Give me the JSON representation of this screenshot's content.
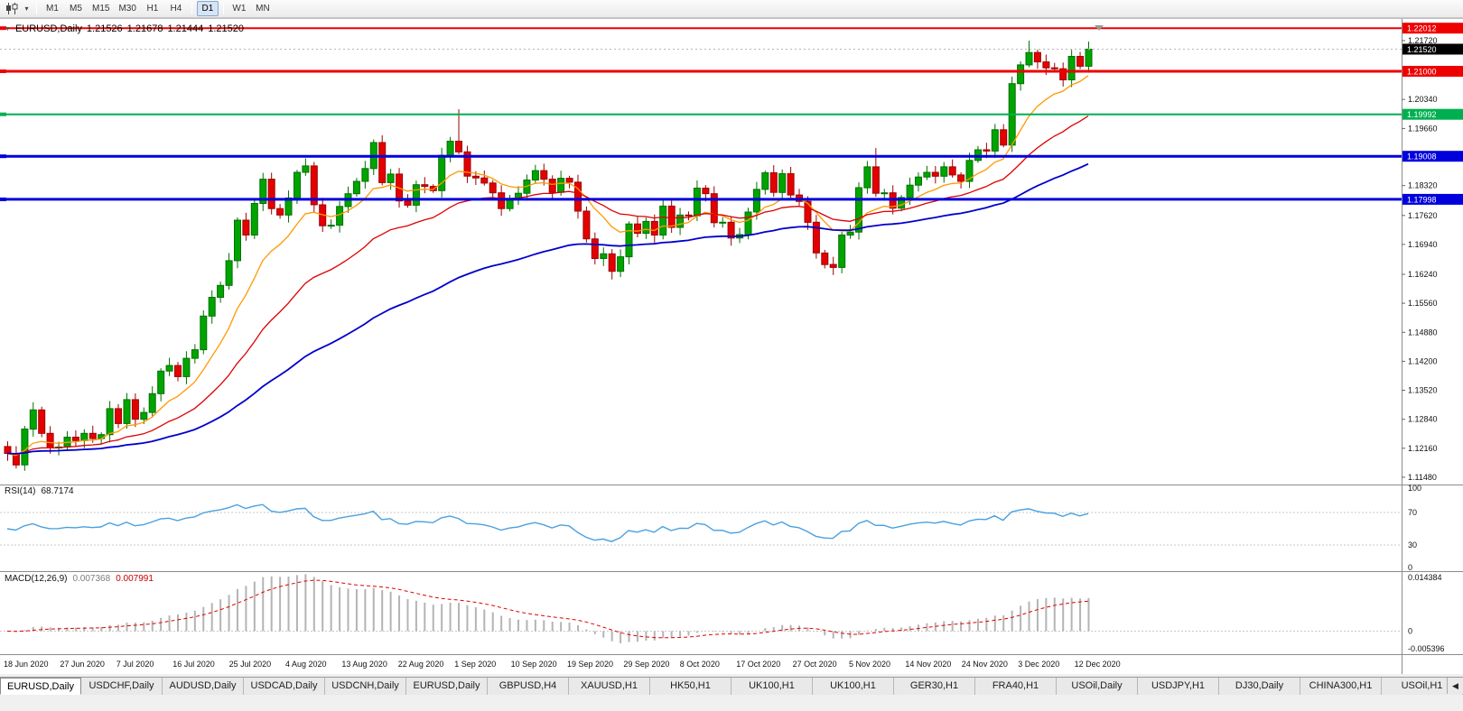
{
  "toolbar": {
    "timeframes": [
      "M1",
      "M5",
      "M15",
      "M30",
      "H1",
      "H4",
      "D1",
      "W1",
      "MN"
    ],
    "active_timeframe": "D1",
    "chart_type_icon": "candlestick-chart-icon",
    "dropdown_glyph": "▾"
  },
  "chart_header": {
    "symbol": "EURUSD,Daily",
    "open": "1.21526",
    "high": "1.21678",
    "low": "1.21444",
    "close": "1.21520"
  },
  "indicators": {
    "rsi": {
      "label": "RSI(14)",
      "value": "68.7174",
      "period": 14,
      "levels": [
        "100",
        "70",
        "30",
        "0"
      ],
      "line_color": "#4aa0e0"
    },
    "macd": {
      "label": "MACD(12,26,9)",
      "macd_value": "0.007368",
      "signal_value": "0.007991",
      "fast": 12,
      "slow": 26,
      "signal": 9,
      "axis_labels": [
        "0.014384",
        "0",
        "-0.005396"
      ],
      "axis_range": [
        -0.005396,
        0.014384
      ],
      "hist_color": "#b4b4b4",
      "signal_color": "#e00000"
    },
    "moving_averages": [
      {
        "period": 10,
        "color": "#ff9900"
      },
      {
        "period": 25,
        "color": "#dd0000"
      },
      {
        "period": 60,
        "color": "#0000cc"
      }
    ]
  },
  "chart_data": {
    "type": "candlestick",
    "symbol": "EURUSD",
    "timeframe": "Daily",
    "up_color": "#00a400",
    "down_color": "#e50000",
    "first_open": 1.122,
    "closes": [
      1.1204,
      1.1177,
      1.1261,
      1.1306,
      1.1251,
      1.1217,
      1.1219,
      1.1242,
      1.1234,
      1.1251,
      1.1239,
      1.1248,
      1.1309,
      1.1274,
      1.133,
      1.1284,
      1.13,
      1.1344,
      1.1397,
      1.141,
      1.1384,
      1.1427,
      1.1447,
      1.1526,
      1.157,
      1.1598,
      1.1656,
      1.1751,
      1.1716,
      1.179,
      1.1847,
      1.1778,
      1.1763,
      1.1803,
      1.1863,
      1.1878,
      1.1787,
      1.1738,
      1.1739,
      1.1783,
      1.1813,
      1.1842,
      1.1872,
      1.1933,
      1.1839,
      1.1859,
      1.1796,
      1.1786,
      1.1834,
      1.183,
      1.182,
      1.1903,
      1.1936,
      1.1911,
      1.1854,
      1.185,
      1.1838,
      1.1815,
      1.1778,
      1.1802,
      1.1814,
      1.1845,
      1.1867,
      1.1847,
      1.1816,
      1.1849,
      1.184,
      1.1772,
      1.1707,
      1.1661,
      1.1672,
      1.1631,
      1.1665,
      1.1742,
      1.172,
      1.1748,
      1.1716,
      1.1784,
      1.1734,
      1.1763,
      1.1761,
      1.1826,
      1.1813,
      1.1745,
      1.1746,
      1.1709,
      1.1717,
      1.177,
      1.1823,
      1.1862,
      1.1816,
      1.186,
      1.181,
      1.1795,
      1.1746,
      1.1674,
      1.1647,
      1.164,
      1.1716,
      1.1723,
      1.1827,
      1.1876,
      1.1814,
      1.1815,
      1.1779,
      1.1804,
      1.1833,
      1.1852,
      1.1863,
      1.1854,
      1.1876,
      1.1857,
      1.1842,
      1.1891,
      1.1916,
      1.1913,
      1.1963,
      1.1927,
      1.2071,
      1.2115,
      1.2144,
      1.2122,
      1.2108,
      1.2106,
      1.208,
      1.2135,
      1.2112,
      1.2152
    ],
    "special_highs": {
      "53": 1.2011,
      "102": 1.192,
      "120": 1.2172,
      "127": 1.2168
    },
    "special_lows": {
      "71": 1.1612
    },
    "price_lines": [
      {
        "price": 1.22012,
        "label": "1.22012",
        "color": "#ee0000",
        "width": 2
      },
      {
        "price": 1.21,
        "label": "1.21000",
        "color": "#ee0000",
        "width": 3
      },
      {
        "price": 1.19992,
        "label": "1.19992",
        "color": "#00b050",
        "width": 2
      },
      {
        "price": 1.19008,
        "label": "1.19008",
        "color": "#0000dd",
        "width": 3
      },
      {
        "price": 1.17998,
        "label": "1.17998",
        "color": "#0000dd",
        "width": 3
      }
    ],
    "current_price": {
      "value": 1.2152,
      "label": "1.21520",
      "box_color": "#000000"
    },
    "price_ticks": {
      "labels": [
        "1.21720",
        "1.20340",
        "1.19660",
        "1.18320",
        "1.17620",
        "1.16940",
        "1.16240",
        "1.15560",
        "1.14880",
        "1.14200",
        "1.13520",
        "1.12840",
        "1.12160",
        "1.11480"
      ],
      "values": [
        1.2172,
        1.2034,
        1.1966,
        1.1832,
        1.1762,
        1.1694,
        1.1624,
        1.1556,
        1.1488,
        1.142,
        1.1352,
        1.1284,
        1.1216,
        1.1148
      ]
    },
    "date_labels": [
      "18 Jun 2020",
      "27 Jun 2020",
      "7 Jul 2020",
      "16 Jul 2020",
      "25 Jul 2020",
      "4 Aug 2020",
      "13 Aug 2020",
      "22 Aug 2020",
      "1 Sep 2020",
      "10 Sep 2020",
      "19 Sep 2020",
      "29 Sep 2020",
      "8 Oct 2020",
      "17 Oct 2020",
      "27 Oct 2020",
      "5 Nov 2020",
      "14 Nov 2020",
      "24 Nov 2020",
      "3 Dec 2020",
      "12 Dec 2020"
    ],
    "ylim": [
      1.1115,
      1.2215
    ]
  },
  "tabs": {
    "scroll_left_icon": "◀",
    "items": [
      {
        "label": "EURUSD,Daily",
        "active": true
      },
      {
        "label": "USDCHF,Daily"
      },
      {
        "label": "AUDUSD,Daily"
      },
      {
        "label": "USDCAD,Daily"
      },
      {
        "label": "USDCNH,Daily"
      },
      {
        "label": "EURUSD,Daily"
      },
      {
        "label": "GBPUSD,H4"
      },
      {
        "label": "XAUUSD,H1"
      },
      {
        "label": "HK50,H1"
      },
      {
        "label": "UK100,H1"
      },
      {
        "label": "UK100,H1"
      },
      {
        "label": "GER30,H1"
      },
      {
        "label": "FRA40,H1"
      },
      {
        "label": "USOil,Daily"
      },
      {
        "label": "USDJPY,H1"
      },
      {
        "label": "DJ30,Daily"
      },
      {
        "label": "CHINA300,H1"
      },
      {
        "label": "USOil,H1"
      }
    ]
  }
}
